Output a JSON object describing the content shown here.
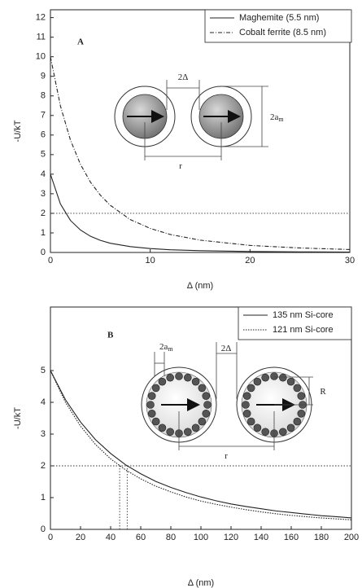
{
  "chart_data": [
    {
      "type": "line",
      "panel_label": "A",
      "x_label": "Δ (nm)",
      "y_label": "-U/kT",
      "x": [
        0,
        1,
        2,
        3,
        4,
        5,
        6,
        8,
        10,
        12,
        15,
        20,
        25,
        30
      ],
      "series": [
        {
          "name": "Maghemite (5.5 nm)",
          "color": "#222222",
          "dash": "solid",
          "values": [
            4,
            2.48,
            1.64,
            1.15,
            0.83,
            0.62,
            0.47,
            0.3,
            0.2,
            0.14,
            0.09,
            0.05,
            0.03,
            0.02
          ]
        },
        {
          "name": "Cobalt ferrite (8.5 nm)",
          "color": "#222222",
          "dash": "dashed",
          "values": [
            10,
            7.49,
            5.75,
            4.51,
            3.6,
            2.93,
            2.41,
            1.68,
            1.23,
            0.92,
            0.63,
            0.36,
            0.23,
            0.15
          ]
        }
      ],
      "reference_lines": [
        {
          "orientation": "horizontal",
          "value": 2
        }
      ],
      "xlim": [
        0,
        30
      ],
      "ylim": [
        0,
        12.4
      ],
      "xticks": [
        0,
        10,
        20,
        30
      ],
      "yticks": [
        0,
        1,
        2,
        3,
        4,
        5,
        6,
        7,
        8,
        9,
        10,
        11,
        12
      ],
      "legend": "top-right",
      "annotations": [
        {
          "text": "2Δ"
        },
        {
          "text": "2a",
          "sub": "m"
        },
        {
          "text": "r"
        }
      ]
    },
    {
      "type": "line",
      "panel_label": "B",
      "x_label": "Δ (nm)",
      "y_label": "-U/kT",
      "x": [
        0,
        10,
        20,
        30,
        40,
        50,
        60,
        70,
        80,
        90,
        100,
        110,
        120,
        130,
        140,
        150,
        160,
        170,
        180,
        190,
        200
      ],
      "series": [
        {
          "name": "135 nm Si-core",
          "color": "#222222",
          "dash": "solid",
          "values": [
            5,
            4.08,
            3.38,
            2.82,
            2.39,
            2.03,
            1.75,
            1.51,
            1.32,
            1.16,
            1.02,
            0.9,
            0.8,
            0.72,
            0.65,
            0.58,
            0.53,
            0.48,
            0.43,
            0.4,
            0.36
          ]
        },
        {
          "name": "121 nm Si-core",
          "color": "#222222",
          "dash": "dotted",
          "values": [
            5,
            4,
            3.25,
            2.67,
            2.22,
            1.87,
            1.59,
            1.36,
            1.18,
            1.02,
            0.89,
            0.79,
            0.7,
            0.62,
            0.55,
            0.49,
            0.44,
            0.4,
            0.36,
            0.33,
            0.3
          ]
        }
      ],
      "reference_lines": [
        {
          "orientation": "horizontal",
          "value": 2
        },
        {
          "orientation": "vertical",
          "value": 46
        },
        {
          "orientation": "vertical",
          "value": 51
        }
      ],
      "xlim": [
        0,
        200
      ],
      "ylim": [
        0,
        7
      ],
      "xticks": [
        0,
        20,
        40,
        60,
        80,
        100,
        120,
        140,
        160,
        180,
        200
      ],
      "yticks": [
        0,
        1,
        2,
        3,
        4,
        5
      ],
      "legend": "top-right",
      "annotations": [
        {
          "text": "2a",
          "sub": "m"
        },
        {
          "text": "2Δ"
        },
        {
          "text": "R"
        },
        {
          "text": "r"
        }
      ]
    }
  ]
}
